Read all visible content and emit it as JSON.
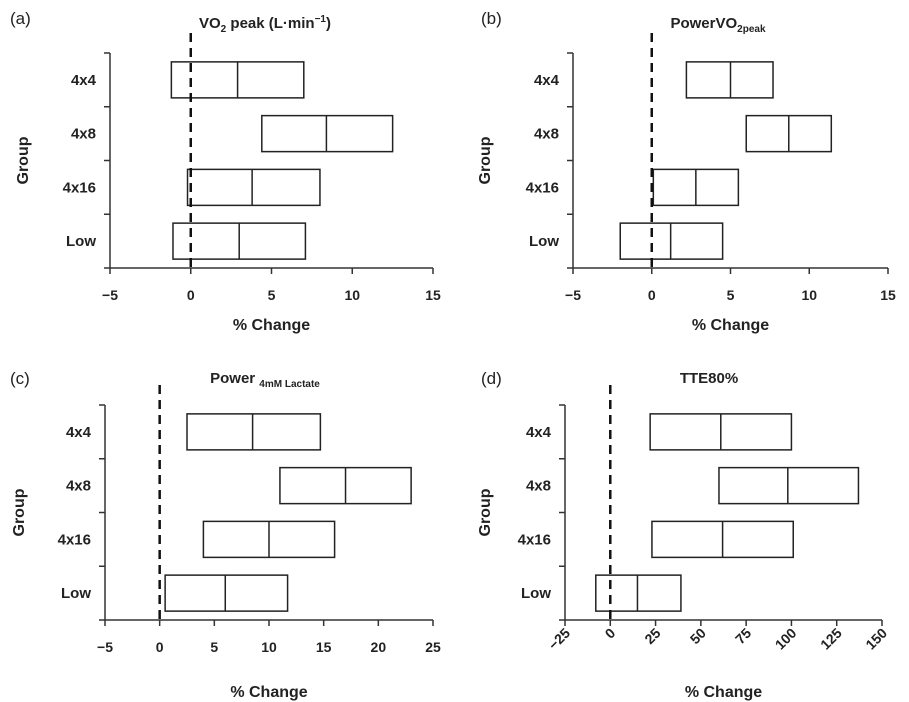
{
  "chart_data": [
    {
      "type": "bar",
      "panel": "(a)",
      "title": {
        "main": "VO",
        "sub": "2",
        "rest": " peak (L·min",
        "sup": "−1",
        "end": ")"
      },
      "xlabel": "% Change",
      "ylabel": "Group",
      "xlim": [
        -5,
        15
      ],
      "xticks": [
        -5,
        0,
        5,
        10,
        15
      ],
      "categories": [
        "4x4",
        "4x8",
        "4x16",
        "Low"
      ],
      "series": [
        {
          "lower": [
            -1.2,
            4.4,
            -0.2,
            -1.1
          ],
          "mid": [
            2.9,
            8.4,
            3.8,
            3.0
          ],
          "upper": [
            7.0,
            12.5,
            8.0,
            7.1
          ]
        }
      ],
      "reference_line": 0
    },
    {
      "type": "bar",
      "panel": "(b)",
      "title": {
        "main": "PowerVO",
        "sub": "2peak"
      },
      "xlabel": "% Change",
      "ylabel": "Group",
      "xlim": [
        -5,
        15
      ],
      "xticks": [
        -5,
        0,
        5,
        10,
        15
      ],
      "categories": [
        "4x4",
        "4x8",
        "4x16",
        "Low"
      ],
      "series": [
        {
          "lower": [
            2.2,
            6.0,
            0.1,
            -2.0
          ],
          "mid": [
            5.0,
            8.7,
            2.8,
            1.2
          ],
          "upper": [
            7.7,
            11.4,
            5.5,
            4.5
          ]
        }
      ],
      "reference_line": 0
    },
    {
      "type": "bar",
      "panel": "(c)",
      "title": {
        "main": "Power ",
        "sub": "4mM Lactate"
      },
      "xlabel": "% Change",
      "ylabel": "Group",
      "xlim": [
        -5,
        25
      ],
      "xticks": [
        -5,
        0,
        5,
        10,
        15,
        20,
        25
      ],
      "categories": [
        "4x4",
        "4x8",
        "4x16",
        "Low"
      ],
      "series": [
        {
          "lower": [
            2.5,
            11.0,
            4.0,
            0.5
          ],
          "mid": [
            8.5,
            17.0,
            10.0,
            6.0
          ],
          "upper": [
            14.7,
            23.0,
            16.0,
            11.7
          ]
        }
      ],
      "reference_line": 0
    },
    {
      "type": "bar",
      "panel": "(d)",
      "title": {
        "main": "TTE80%"
      },
      "xlabel": "% Change",
      "ylabel": "Group",
      "xlim": [
        -25,
        150
      ],
      "xticks": [
        -25,
        0,
        25,
        50,
        75,
        100,
        125,
        150
      ],
      "xtick_rotation": -45,
      "categories": [
        "4x4",
        "4x8",
        "4x16",
        "Low"
      ],
      "series": [
        {
          "lower": [
            22,
            60,
            23,
            -8
          ],
          "mid": [
            61,
            98,
            62,
            15
          ],
          "upper": [
            100,
            137,
            101,
            39
          ]
        }
      ],
      "reference_line": 0
    }
  ]
}
